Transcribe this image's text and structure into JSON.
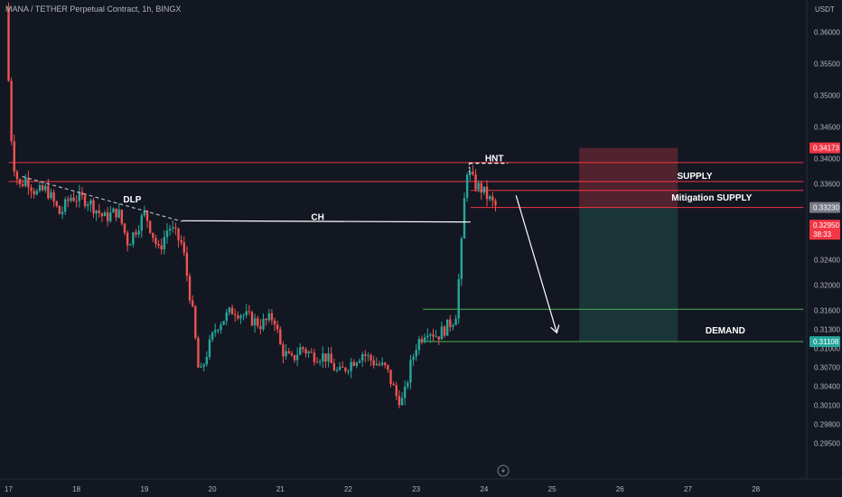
{
  "header": {
    "title": "MANA / TETHER Perpetual Contract, 1h, BINGX"
  },
  "colors": {
    "background": "#131722",
    "up": "#26a69a",
    "down": "#ef5350",
    "supply_line": "#f23645",
    "demand_line": "#4caf50",
    "stop_zone": "#5c2630",
    "target_zone": "#1b3b3a",
    "text": "#b2b5be"
  },
  "chart_data": {
    "type": "candlestick",
    "title": "MANA / TETHER Perpetual Contract, 1h, BINGX",
    "y_unit_label": "USDT",
    "y_axis_side": "right",
    "ylim": [
      0.2945,
      0.3667
    ],
    "xlim": [
      17.0,
      28.7
    ],
    "y_ticks": [
      "0.36000",
      "0.35500",
      "0.35000",
      "0.34500",
      "0.34000",
      "0.33600",
      "0.32950",
      "0.32400",
      "0.32000",
      "0.31600",
      "0.31300",
      "0.31000",
      "0.30700",
      "0.30400",
      "0.30100",
      "0.29800",
      "0.29500"
    ],
    "x_ticks": [
      "17",
      "18",
      "19",
      "20",
      "21",
      "22",
      "23",
      "24",
      "25",
      "26",
      "27",
      "28"
    ],
    "price_tags": [
      {
        "label": "0.34173",
        "value": 0.34173,
        "color": "#f23645"
      },
      {
        "label": "0.33230",
        "value": 0.3323,
        "color": "#787b86"
      },
      {
        "label": "0.32950",
        "sub": "38:33",
        "value": 0.3295,
        "color": "#f23645"
      },
      {
        "label": "0.31108",
        "value": 0.31108,
        "color": "#26a69a"
      }
    ],
    "levels": [
      {
        "name": "supply-top",
        "value": 0.3394,
        "x_from": 17.0,
        "x_to": 28.7,
        "color": "#f23645"
      },
      {
        "name": "supply-bottom",
        "value": 0.3364,
        "x_from": 17.0,
        "x_to": 28.7,
        "color": "#f23645"
      },
      {
        "name": "mitigation-top",
        "value": 0.335,
        "x_from": 23.8,
        "x_to": 28.7,
        "color": "#f23645"
      },
      {
        "name": "mitigation-bottom",
        "value": 0.3323,
        "x_from": 23.8,
        "x_to": 28.7,
        "color": "#f23645"
      },
      {
        "name": "demand-top",
        "value": 0.3162,
        "x_from": 23.1,
        "x_to": 28.7,
        "color": "#4caf50"
      },
      {
        "name": "demand-bottom",
        "value": 0.3111,
        "x_from": 23.05,
        "x_to": 28.7,
        "color": "#4caf50"
      }
    ],
    "zones": [
      {
        "name": "stop-loss-zone",
        "x_from": 25.4,
        "x_to": 26.85,
        "y_from": 0.3323,
        "y_to": 0.34173,
        "color": "#5c2630"
      },
      {
        "name": "take-profit-zone",
        "x_from": 25.4,
        "x_to": 26.85,
        "y_from": 0.31108,
        "y_to": 0.3323,
        "color": "#1b3b3a"
      }
    ],
    "annotations": [
      {
        "text": "DLP",
        "x": 18.82,
        "y": 0.3331
      },
      {
        "text": "CH",
        "x": 21.55,
        "y": 0.3303
      },
      {
        "text": "HNT",
        "x": 24.15,
        "y": 0.3396
      },
      {
        "text": "SUPPLY",
        "x": 27.1,
        "y": 0.3368
      },
      {
        "text": "Mitigation SUPPLY",
        "x": 27.35,
        "y": 0.3334
      },
      {
        "text": "DEMAND",
        "x": 27.55,
        "y": 0.3124
      }
    ],
    "lines": [
      {
        "name": "dlp-dashed-line",
        "dashed": true,
        "color": "#b2b5be",
        "points": [
          [
            17.2,
            0.3372
          ],
          [
            19.55,
            0.3301
          ]
        ]
      },
      {
        "name": "ch-line",
        "dashed": false,
        "color": "#ffffff",
        "points": [
          [
            19.55,
            0.3302
          ],
          [
            23.8,
            0.33
          ]
        ]
      },
      {
        "name": "hnt-dashed-line",
        "dashed": true,
        "color": "#ffffff",
        "points": [
          [
            23.78,
            0.3393
          ],
          [
            24.35,
            0.3393
          ]
        ]
      },
      {
        "name": "projection-arrow",
        "dashed": false,
        "arrow": true,
        "color": "#ffffff",
        "points": [
          [
            24.47,
            0.3342
          ],
          [
            25.07,
            0.3125
          ]
        ]
      }
    ],
    "candles_note": "Hourly candles reproduced from the chart shape",
    "candle_keyframes": [
      [
        17.0,
        0.364
      ],
      [
        17.05,
        0.35
      ],
      [
        17.1,
        0.34
      ],
      [
        17.2,
        0.3355
      ],
      [
        17.3,
        0.337
      ],
      [
        17.45,
        0.3345
      ],
      [
        17.6,
        0.3352
      ],
      [
        17.8,
        0.3312
      ],
      [
        17.95,
        0.334
      ],
      [
        18.2,
        0.3335
      ],
      [
        18.45,
        0.3306
      ],
      [
        18.65,
        0.3318
      ],
      [
        18.8,
        0.3266
      ],
      [
        19.05,
        0.3315
      ],
      [
        19.25,
        0.3254
      ],
      [
        19.4,
        0.3294
      ],
      [
        19.6,
        0.3264
      ],
      [
        19.75,
        0.3156
      ],
      [
        19.85,
        0.3052
      ],
      [
        19.95,
        0.309
      ],
      [
        20.1,
        0.3136
      ],
      [
        20.35,
        0.3162
      ],
      [
        20.55,
        0.315
      ],
      [
        20.75,
        0.3138
      ],
      [
        20.95,
        0.315
      ],
      [
        21.05,
        0.31
      ],
      [
        21.2,
        0.308
      ],
      [
        21.35,
        0.3102
      ],
      [
        21.5,
        0.309
      ],
      [
        21.7,
        0.3088
      ],
      [
        21.9,
        0.306
      ],
      [
        22.05,
        0.3075
      ],
      [
        22.25,
        0.3093
      ],
      [
        22.4,
        0.308
      ],
      [
        22.6,
        0.3068
      ],
      [
        22.75,
        0.3025
      ],
      [
        22.85,
        0.3016
      ],
      [
        22.95,
        0.307
      ],
      [
        23.05,
        0.3108
      ],
      [
        23.2,
        0.3132
      ],
      [
        23.35,
        0.312
      ],
      [
        23.5,
        0.3135
      ],
      [
        23.62,
        0.315
      ],
      [
        23.7,
        0.325
      ],
      [
        23.78,
        0.3385
      ],
      [
        23.9,
        0.336
      ],
      [
        24.0,
        0.3352
      ],
      [
        24.1,
        0.3338
      ],
      [
        24.2,
        0.3325
      ]
    ]
  }
}
